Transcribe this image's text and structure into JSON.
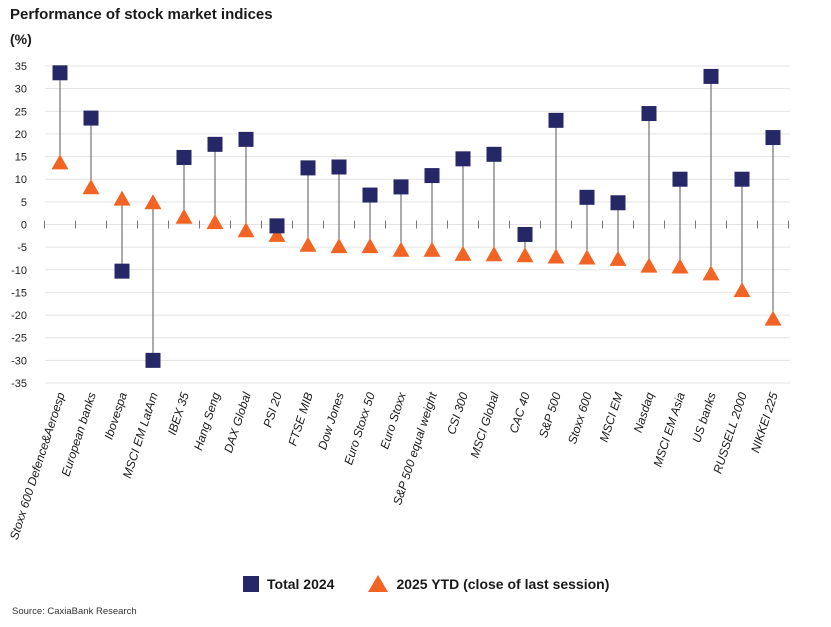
{
  "title": "Performance of stock market indices",
  "unit": "(%)",
  "source": "Source: CaxiaBank Research",
  "colors": {
    "total": "#262766",
    "ytd": "#f26423",
    "stem": "#555555",
    "grid": "#e3e3e3"
  },
  "legend": {
    "total": "Total 2024",
    "ytd": "2025 YTD (close of last session)"
  },
  "chart_data": {
    "type": "dot-plot",
    "title": "Performance of stock market indices",
    "ylabel": "(%)",
    "ylim": [
      -35,
      35
    ],
    "yticks": [
      35,
      30,
      25,
      20,
      15,
      10,
      5,
      0,
      -5,
      -10,
      -15,
      -20,
      -25,
      -30,
      -35
    ],
    "categories": [
      "Stoxx 600 Defence&Aeroesp",
      "European banks",
      "Ibovespa",
      "MSCI EM LatAm",
      "IBEX 35",
      "Hang Seng",
      "DAX Global",
      "PSI 20",
      "FTSE MIB",
      "Dow Jones",
      "Euro Stoxx 50",
      "Euro Stoxx",
      "S&P 500 equal weight",
      "CSI 300",
      "MSCI Global",
      "CAC 40",
      "S&P 500",
      "Stoxx 600",
      "MSCI EM",
      "Nasdaq",
      "MSCI EM Asia",
      "US banks",
      "RUSSELL 2000",
      "NIKKEI 225"
    ],
    "series": [
      {
        "name": "Total 2024",
        "marker": "square",
        "values": [
          33.5,
          23.5,
          -10.3,
          -30.0,
          14.8,
          17.7,
          18.8,
          -0.3,
          12.5,
          12.7,
          6.5,
          8.3,
          10.8,
          14.5,
          15.5,
          -2.2,
          23.0,
          6.0,
          4.8,
          24.5,
          10.0,
          32.7,
          10.0,
          19.2
        ]
      },
      {
        "name": "2025 YTD (close of last session)",
        "marker": "triangle",
        "values": [
          13.5,
          8.0,
          5.5,
          4.7,
          1.5,
          0.3,
          -1.5,
          -2.5,
          -4.7,
          -5.0,
          -5.0,
          -5.8,
          -5.8,
          -6.7,
          -6.8,
          -7.0,
          -7.3,
          -7.5,
          -7.8,
          -9.3,
          -9.5,
          -11.0,
          -14.7,
          -21.0
        ]
      }
    ]
  }
}
